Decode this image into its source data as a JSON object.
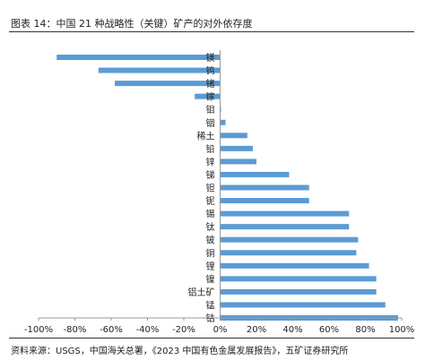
{
  "header": {
    "title": "图表 14：中国 21 种战略性（关键）矿产的对外依存度"
  },
  "footer": {
    "source": "资料来源：USGS，中国海关总署，《2023 中国有色金属发展报告》，五矿证券研究所"
  },
  "colors": {
    "bar": "#5b9bd5",
    "axis": "#999999"
  },
  "chart_data": {
    "type": "bar",
    "orientation": "horizontal",
    "title": "",
    "xlabel": "",
    "ylabel": "",
    "xlim": [
      -1.0,
      1.0
    ],
    "xticks": [
      -1.0,
      -0.8,
      -0.6,
      -0.4,
      -0.2,
      0,
      0.2,
      0.4,
      0.6,
      0.8,
      1.0
    ],
    "xtick_labels": [
      "-100%",
      "-80%",
      "-60%",
      "-40%",
      "-20%",
      "0%",
      "20%",
      "40%",
      "60%",
      "80%",
      "100%"
    ],
    "grid": false,
    "legend": "none",
    "categories": [
      "镁",
      "钨",
      "锗",
      "镓",
      "钼",
      "铟",
      "稀土",
      "铅",
      "锌",
      "锑",
      "钽",
      "铌",
      "锡",
      "钛",
      "铍",
      "铜",
      "锂",
      "镍",
      "铝土矿",
      "锰",
      "钴"
    ],
    "values": [
      -0.9,
      -0.67,
      -0.58,
      -0.14,
      0.005,
      0.03,
      0.15,
      0.18,
      0.2,
      0.38,
      0.49,
      0.49,
      0.71,
      0.71,
      0.76,
      0.75,
      0.82,
      0.86,
      0.86,
      0.91,
      0.98
    ]
  }
}
